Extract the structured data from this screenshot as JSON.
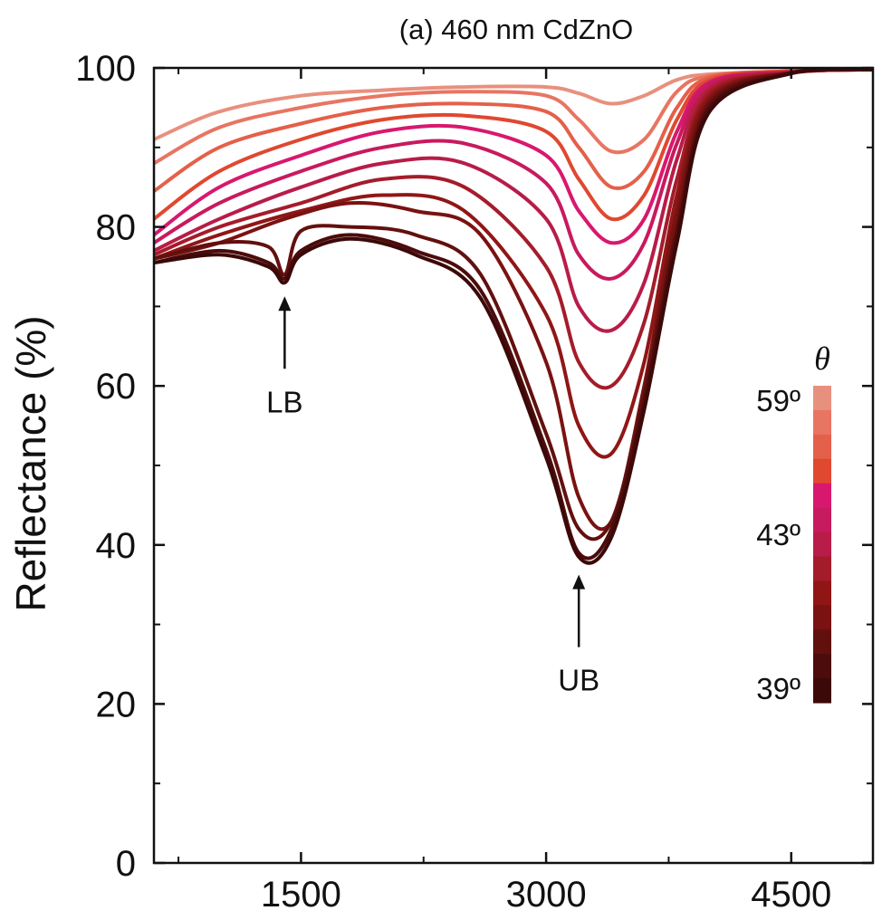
{
  "chart_data": {
    "type": "line",
    "title": "(a) 460 nm CdZnO",
    "xlabel": "",
    "ylabel": "Reflectance (%)",
    "xlim": [
      600,
      5000
    ],
    "ylim": [
      0,
      100
    ],
    "x_ticks": [
      1500,
      3000,
      4500
    ],
    "y_ticks": [
      0,
      20,
      40,
      60,
      80,
      100
    ],
    "grid": false,
    "legend": {
      "title": "θ",
      "placement": "right",
      "labels": [
        "59º",
        "43º",
        "39º"
      ]
    },
    "annotations": [
      {
        "text": "LB",
        "x": 1400,
        "y": 74
      },
      {
        "text": "UB",
        "x": 3200,
        "y": 39
      }
    ],
    "series": [
      {
        "color": "#E8907E",
        "x": [
          600,
          1000,
          1500,
          2000,
          2500,
          3000,
          3200,
          3400,
          3600,
          3800,
          4000,
          4500,
          5000
        ],
        "y": [
          91,
          94.5,
          96.5,
          97.2,
          97.6,
          97.6,
          96.8,
          95.5,
          96.5,
          98.5,
          99.2,
          99.6,
          99.8
        ]
      },
      {
        "color": "#E87562",
        "x": [
          600,
          1000,
          1500,
          2000,
          2500,
          3000,
          3200,
          3400,
          3600,
          3800,
          4000,
          4500,
          5000
        ],
        "y": [
          88,
          92.5,
          95,
          96.5,
          97,
          96.5,
          93.5,
          89.5,
          91,
          97,
          99,
          99.6,
          99.8
        ]
      },
      {
        "color": "#E4604A",
        "x": [
          600,
          1000,
          1500,
          2000,
          2500,
          3000,
          3200,
          3400,
          3600,
          3800,
          4000,
          4500,
          5000
        ],
        "y": [
          84.5,
          90,
          93,
          95,
          95.5,
          94.5,
          90,
          85,
          87,
          95,
          98.8,
          99.6,
          99.8
        ]
      },
      {
        "color": "#E04830",
        "x": [
          600,
          1000,
          1500,
          2000,
          2500,
          3000,
          3200,
          3400,
          3600,
          3800,
          4000,
          4500,
          5000
        ],
        "y": [
          81,
          87,
          91,
          93.5,
          94,
          92,
          86,
          81,
          84,
          93.5,
          98.5,
          99.6,
          99.8
        ]
      },
      {
        "color": "#D8186E",
        "x": [
          600,
          1000,
          1500,
          2000,
          2500,
          3000,
          3200,
          3400,
          3600,
          3800,
          4000,
          4500,
          5000
        ],
        "y": [
          79,
          85,
          89,
          92,
          92.5,
          89,
          82,
          78,
          81,
          92,
          98.2,
          99.5,
          99.8
        ]
      },
      {
        "color": "#C81A5E",
        "x": [
          600,
          1000,
          1500,
          2000,
          2500,
          3000,
          3200,
          3400,
          3600,
          3800,
          4000,
          4500,
          5000
        ],
        "y": [
          78,
          83,
          87,
          90,
          90.5,
          85.5,
          76.5,
          73.5,
          78,
          90.5,
          98,
          99.5,
          99.8
        ]
      },
      {
        "color": "#B81C48",
        "x": [
          600,
          1000,
          1500,
          2000,
          2500,
          3000,
          3200,
          3400,
          3600,
          3800,
          4000,
          4500,
          5000
        ],
        "y": [
          77,
          81,
          85,
          88,
          88,
          81,
          70,
          67,
          73,
          88.5,
          97.5,
          99.5,
          99.8
        ]
      },
      {
        "color": "#A41C2A",
        "x": [
          600,
          1000,
          1500,
          2000,
          2500,
          3000,
          3200,
          3400,
          3600,
          3800,
          4000,
          4500,
          5000
        ],
        "y": [
          76.5,
          80,
          83,
          86,
          85,
          75,
          63,
          60,
          68,
          86,
          97,
          99.4,
          99.8
        ]
      },
      {
        "color": "#901616",
        "x": [
          600,
          1000,
          1500,
          2000,
          2500,
          3000,
          3200,
          3400,
          3600,
          3800,
          4000,
          4500,
          5000
        ],
        "y": [
          76,
          79,
          82,
          84,
          82,
          69,
          55,
          51.5,
          63,
          84,
          96.5,
          99.4,
          99.8
        ]
      },
      {
        "color": "#7A1212",
        "x": [
          600,
          1000,
          1400,
          1800,
          2200,
          2600,
          3000,
          3200,
          3400,
          3600,
          3800,
          4000,
          4500,
          5000
        ],
        "y": [
          76,
          78,
          81,
          83,
          82,
          79,
          63,
          46,
          43,
          60,
          82,
          96,
          99.4,
          99.8
        ]
      },
      {
        "color": "#62100E",
        "x": [
          600,
          1000,
          1300,
          1400,
          1500,
          1800,
          2200,
          2600,
          3000,
          3200,
          3400,
          3600,
          3800,
          4000,
          4500,
          5000
        ],
        "y": [
          76,
          78,
          77.5,
          74,
          79.5,
          80,
          79,
          74,
          54,
          42,
          43,
          59,
          80,
          95.5,
          99.4,
          99.8
        ]
      },
      {
        "color": "#4C0C0C",
        "x": [
          600,
          1000,
          1300,
          1400,
          1500,
          1800,
          2200,
          2600,
          3000,
          3200,
          3400,
          3600,
          3800,
          4000,
          4500,
          5000
        ],
        "y": [
          75.5,
          77,
          75.5,
          73.5,
          77,
          79,
          77,
          72,
          52,
          39,
          42,
          58,
          79,
          95,
          99.3,
          99.8
        ]
      },
      {
        "color": "#3C0808",
        "x": [
          600,
          1000,
          1300,
          1400,
          1500,
          1800,
          2200,
          2600,
          3000,
          3200,
          3400,
          3600,
          3800,
          4000,
          4500,
          5000
        ],
        "y": [
          75.5,
          76.5,
          75,
          73,
          76.5,
          78.5,
          76.5,
          71,
          51,
          38.5,
          41,
          57,
          78,
          94.5,
          99.3,
          99.8
        ]
      }
    ]
  }
}
